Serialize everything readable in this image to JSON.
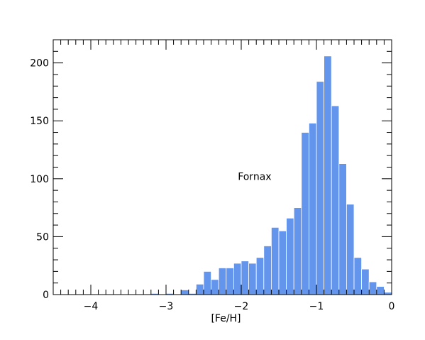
{
  "chart_data": {
    "type": "bar",
    "title": "",
    "xlabel": "[Fe/H]",
    "ylabel": "",
    "xlim": [
      -4.5,
      0
    ],
    "ylim": [
      0,
      220
    ],
    "grid": false,
    "bin_width": 0.1,
    "bar_color": "#6495ed",
    "x_ticks": [
      -4,
      -3,
      -2,
      -1,
      0
    ],
    "x_tick_labels": [
      "−4",
      "−3",
      "−2",
      "−1",
      "0"
    ],
    "y_ticks": [
      0,
      50,
      100,
      150,
      200
    ],
    "y_tick_labels": [
      "0",
      "50",
      "100",
      "150",
      "200"
    ],
    "annotation": {
      "text": "Fornax",
      "x": -1.8,
      "y": 102
    },
    "bins": [
      {
        "x0": -3.2,
        "x1": -3.1,
        "value": 1
      },
      {
        "x0": -3.1,
        "x1": -3.0,
        "value": 0
      },
      {
        "x0": -3.0,
        "x1": -2.9,
        "value": 1
      },
      {
        "x0": -2.9,
        "x1": -2.8,
        "value": 0
      },
      {
        "x0": -2.8,
        "x1": -2.7,
        "value": 4
      },
      {
        "x0": -2.7,
        "x1": -2.6,
        "value": 1
      },
      {
        "x0": -2.6,
        "x1": -2.5,
        "value": 9
      },
      {
        "x0": -2.5,
        "x1": -2.4,
        "value": 20
      },
      {
        "x0": -2.4,
        "x1": -2.3,
        "value": 13
      },
      {
        "x0": -2.3,
        "x1": -2.2,
        "value": 23
      },
      {
        "x0": -2.2,
        "x1": -2.1,
        "value": 23
      },
      {
        "x0": -2.1,
        "x1": -2.0,
        "value": 27
      },
      {
        "x0": -2.0,
        "x1": -1.9,
        "value": 29
      },
      {
        "x0": -1.9,
        "x1": -1.8,
        "value": 27
      },
      {
        "x0": -1.8,
        "x1": -1.7,
        "value": 32
      },
      {
        "x0": -1.7,
        "x1": -1.6,
        "value": 42
      },
      {
        "x0": -1.6,
        "x1": -1.5,
        "value": 58
      },
      {
        "x0": -1.5,
        "x1": -1.4,
        "value": 55
      },
      {
        "x0": -1.4,
        "x1": -1.3,
        "value": 66
      },
      {
        "x0": -1.3,
        "x1": -1.2,
        "value": 75
      },
      {
        "x0": -1.2,
        "x1": -1.1,
        "value": 140
      },
      {
        "x0": -1.1,
        "x1": -1.0,
        "value": 148
      },
      {
        "x0": -1.0,
        "x1": -0.9,
        "value": 184
      },
      {
        "x0": -0.9,
        "x1": -0.8,
        "value": 206
      },
      {
        "x0": -0.8,
        "x1": -0.7,
        "value": 163
      },
      {
        "x0": -0.7,
        "x1": -0.6,
        "value": 113
      },
      {
        "x0": -0.6,
        "x1": -0.5,
        "value": 78
      },
      {
        "x0": -0.5,
        "x1": -0.4,
        "value": 32
      },
      {
        "x0": -0.4,
        "x1": -0.3,
        "value": 22
      },
      {
        "x0": -0.3,
        "x1": -0.2,
        "value": 11
      },
      {
        "x0": -0.2,
        "x1": -0.1,
        "value": 7
      },
      {
        "x0": -0.1,
        "x1": 0.0,
        "value": 2
      }
    ]
  }
}
